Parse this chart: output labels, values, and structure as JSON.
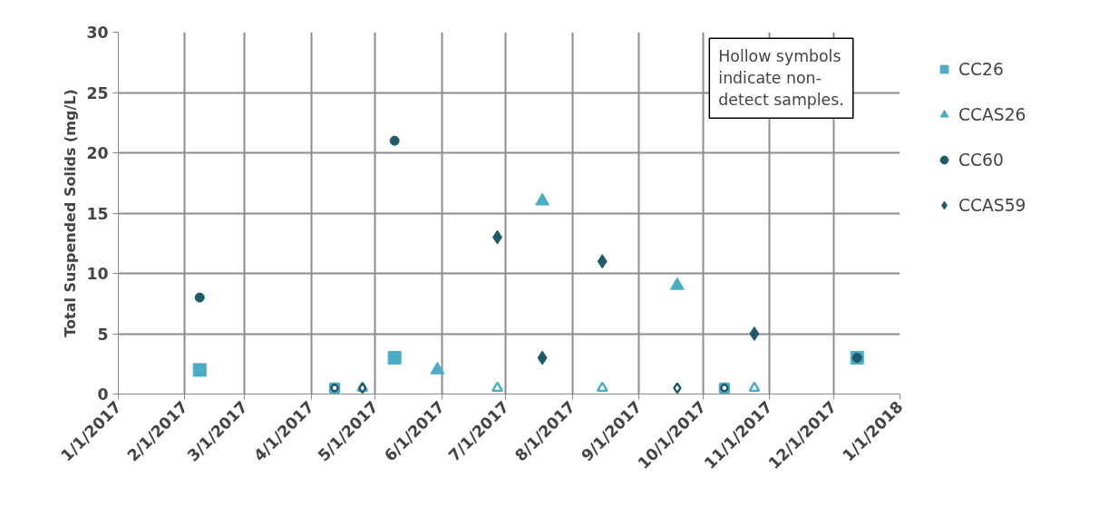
{
  "chart_data": {
    "type": "scatter",
    "ylabel": "Total Suspended Solids (mg/L)",
    "xlim": [
      "2017-01-01",
      "2018-01-01"
    ],
    "xticks": [
      {
        "value": "2017-01-01",
        "label": "1/1/2017"
      },
      {
        "value": "2017-02-01",
        "label": "2/1/2017"
      },
      {
        "value": "2017-03-01",
        "label": "3/1/2017"
      },
      {
        "value": "2017-04-01",
        "label": "4/1/2017"
      },
      {
        "value": "2017-05-01",
        "label": "5/1/2017"
      },
      {
        "value": "2017-06-01",
        "label": "6/1/2017"
      },
      {
        "value": "2017-07-01",
        "label": "7/1/2017"
      },
      {
        "value": "2017-08-01",
        "label": "8/1/2017"
      },
      {
        "value": "2017-09-01",
        "label": "9/1/2017"
      },
      {
        "value": "2017-10-01",
        "label": "10/1/2017"
      },
      {
        "value": "2017-11-01",
        "label": "11/1/2017"
      },
      {
        "value": "2017-12-01",
        "label": "12/1/2017"
      },
      {
        "value": "2018-01-01",
        "label": "1/1/2018"
      }
    ],
    "ylim": [
      0,
      30
    ],
    "yticks": [
      0,
      5,
      10,
      15,
      20,
      25,
      30
    ],
    "grid": true,
    "legend": "right",
    "annotations": [
      "Hollow symbols indicate non-detect samples."
    ],
    "series": [
      {
        "name": "CC26",
        "color": "#4bacc6",
        "marker": "square",
        "x": [
          "2017-02-08",
          "2017-05-10",
          "2017-12-12"
        ],
        "values": [
          2,
          3,
          3
        ]
      },
      {
        "name": "CCAS26",
        "color": "#4bacc6",
        "marker": "triangle",
        "x": [
          "2017-05-30",
          "2017-07-18",
          "2017-09-19"
        ],
        "values": [
          2,
          16,
          9
        ]
      },
      {
        "name": "CC60",
        "color": "#1f5a6b",
        "marker": "circle",
        "x": [
          "2017-02-08",
          "2017-05-10",
          "2017-12-12"
        ],
        "values": [
          8,
          21,
          3
        ]
      },
      {
        "name": "CCAS59",
        "color": "#1f5a6b",
        "marker": "diamond",
        "x": [
          "2017-06-27",
          "2017-07-18",
          "2017-08-15",
          "2017-10-25"
        ],
        "values": [
          13,
          3,
          11,
          5
        ]
      },
      {
        "color": "#4bacc6",
        "marker": "square",
        "x": [
          "2017-04-12",
          "2017-10-11"
        ],
        "values": [
          0.5,
          0.5
        ]
      },
      {
        "color": "#4bacc6",
        "marker": "triangle",
        "x": [
          "2017-04-25",
          "2017-06-27",
          "2017-08-15",
          "2017-10-25"
        ],
        "values": [
          0.5,
          0.5,
          0.5,
          0.5
        ]
      },
      {
        "color": "#1f5a6b",
        "marker": "circle",
        "x": [
          "2017-04-12",
          "2017-10-11"
        ],
        "values": [
          0.5,
          0.5
        ]
      },
      {
        "color": "#1f5a6b",
        "marker": "diamond",
        "x": [
          "2017-04-25",
          "2017-09-19"
        ],
        "values": [
          0.5,
          0.5
        ]
      }
    ]
  }
}
